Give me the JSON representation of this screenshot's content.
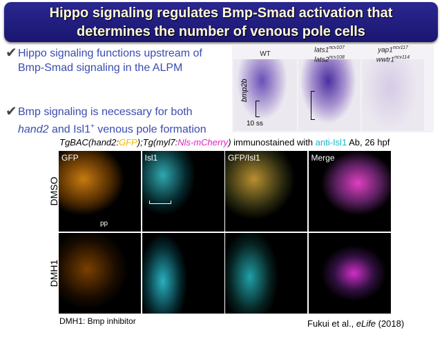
{
  "header": {
    "title_lines": [
      "Hippo signaling regulates Bmp-Smad activation that",
      "determines the number of venous pole cells"
    ]
  },
  "bullets": [
    {
      "check": "✔",
      "lines": [
        [
          "Hippo signaling functions upstream of"
        ],
        [
          "Bmp-Smad signaling in the ALPM"
        ]
      ]
    },
    {
      "check": "✔",
      "lines": [
        [
          "Bmp signaling is necessary for both"
        ],
        [
          "hand2",
          " and Isl1",
          "+",
          " venous pole formation"
        ]
      ]
    }
  ],
  "in_situ": {
    "gene": "bmp2b",
    "stage": "10 ss",
    "genotypes": [
      {
        "lines": [
          {
            "gene": "WT"
          }
        ]
      },
      {
        "lines": [
          {
            "gene": "lats1",
            "allele": "ncv107"
          },
          {
            "gene": "lats2",
            "allele": "ncv108"
          }
        ]
      },
      {
        "lines": [
          {
            "gene": "yap1",
            "allele": "ncv117"
          },
          {
            "gene": "wwtr1",
            "allele": "ncv114"
          }
        ]
      }
    ]
  },
  "caption": [
    "TgBAC(hand2:",
    "GFP",
    ");Tg(myl7:",
    "Nls-mCherry",
    ")",
    " immunostained with ",
    "anti-Isl1",
    " Ab, 26 hpf"
  ],
  "panels": {
    "columns": [
      "GFP",
      "Isl1",
      "GFP/Isl1",
      "Merge"
    ],
    "rows": [
      "DMSO",
      "DMH1"
    ],
    "annotation": "pp"
  },
  "footnote": "DMH1: Bmp inhibitor",
  "citation": [
    "Fukui et al., ",
    "eLife",
    " (2018)"
  ]
}
